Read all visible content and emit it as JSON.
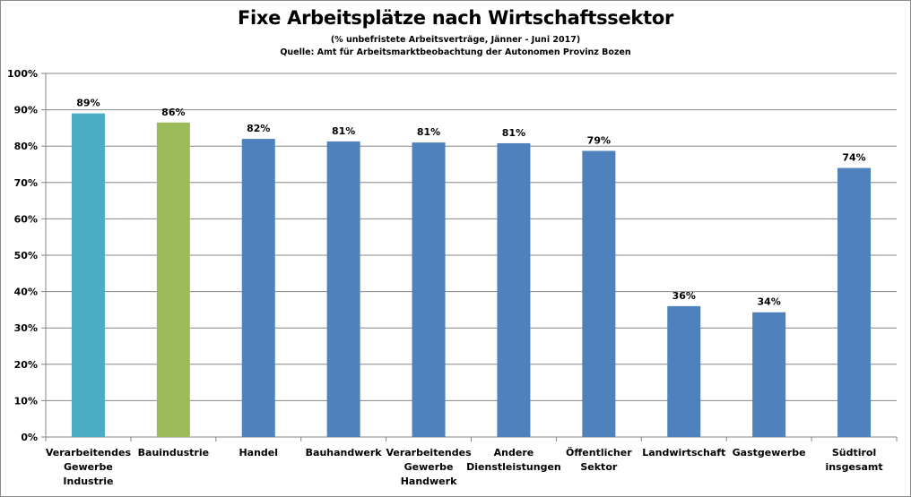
{
  "chart_data": {
    "type": "bar",
    "title": "Fixe Arbeitsplätze nach Wirtschaftssektor",
    "subtitle": "(% unbefristete Arbeitsverträge, Jänner - Juni 2017)",
    "source": "Quelle: Amt für Arbeitsmarktbeobachtung der Autonomen Provinz Bozen",
    "xlabel": "",
    "ylabel": "",
    "ylim": [
      0,
      100
    ],
    "yticks": [
      "0%",
      "10%",
      "20%",
      "30%",
      "40%",
      "50%",
      "60%",
      "70%",
      "80%",
      "90%",
      "100%"
    ],
    "grid": true,
    "categories": [
      [
        "Verarbeitendes",
        "Gewerbe",
        "Industrie"
      ],
      [
        "Bauindustrie"
      ],
      [
        "Handel"
      ],
      [
        "Bauhandwerk"
      ],
      [
        "Verarbeitendes",
        "Gewerbe",
        "Handwerk"
      ],
      [
        "Andere",
        "Dienstleistungen"
      ],
      [
        "Öffentlicher",
        "Sektor"
      ],
      [
        "Landwirtschaft"
      ],
      [
        "Gastgewerbe"
      ],
      [
        "Südtirol",
        "insgesamt"
      ]
    ],
    "values": [
      89,
      86.5,
      82,
      81.3,
      81,
      80.8,
      78.7,
      36,
      34.3,
      74
    ],
    "data_labels": [
      "89%",
      "86%",
      "82%",
      "81%",
      "81%",
      "81%",
      "79%",
      "36%",
      "34%",
      "74%"
    ],
    "colors": [
      "#4bacc6",
      "#9bbb59",
      "#4f81bd",
      "#4f81bd",
      "#4f81bd",
      "#4f81bd",
      "#4f81bd",
      "#4f81bd",
      "#4f81bd",
      "#4f81bd"
    ],
    "grid_color": "#868686",
    "axis_color": "#868686"
  }
}
